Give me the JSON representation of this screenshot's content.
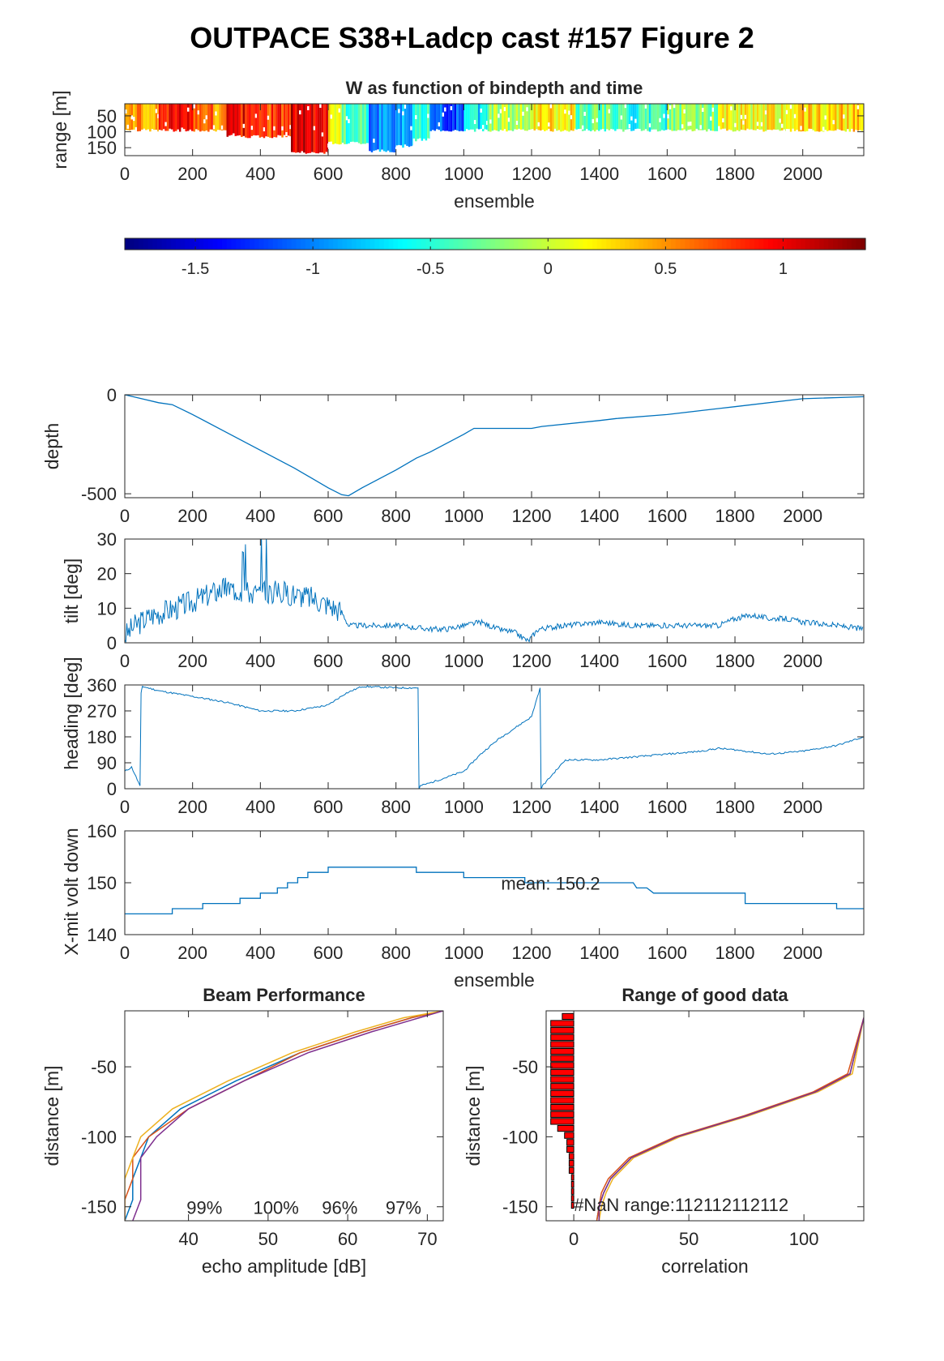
{
  "figure": {
    "title": "OUTPACE S38+Ladcp cast #157 Figure 2"
  },
  "colors": {
    "line": "#0072BD",
    "axis": "#262626",
    "bar_fill": "#FF0000",
    "series": [
      "#0072BD",
      "#D95319",
      "#EDB120",
      "#7E2F8E"
    ]
  },
  "chart_data": [
    {
      "id": "w_image",
      "type": "heatmap",
      "title": "W as function of bindepth and time",
      "xlabel": "ensemble",
      "ylabel": "range [m]",
      "xlim": [
        0,
        2180
      ],
      "ylim": [
        175,
        12
      ],
      "xticks": [
        0,
        200,
        400,
        600,
        800,
        1000,
        1200,
        1400,
        1600,
        1800,
        2000
      ],
      "yticks": [
        50,
        100,
        150
      ],
      "colormap": "jet",
      "clim": [
        -1.8,
        1.35
      ],
      "colorbar_ticks": [
        -1.5,
        -1,
        -0.5,
        0,
        0.5,
        1
      ],
      "segments": [
        {
          "x": [
            0,
            100
          ],
          "w": 0.45,
          "bottom": 100
        },
        {
          "x": [
            100,
            190
          ],
          "w": 0.9,
          "bottom": 100
        },
        {
          "x": [
            190,
            260
          ],
          "w": 0.75,
          "bottom": 100
        },
        {
          "x": [
            260,
            300
          ],
          "w": 0.55,
          "bottom": 100
        },
        {
          "x": [
            300,
            420
          ],
          "w": 0.95,
          "bottom": 120
        },
        {
          "x": [
            420,
            490
          ],
          "w": 0.8,
          "bottom": 120
        },
        {
          "x": [
            490,
            600
          ],
          "w": 1.05,
          "bottom": 170
        },
        {
          "x": [
            600,
            640
          ],
          "w": 0.1,
          "bottom": 140
        },
        {
          "x": [
            640,
            720
          ],
          "w": -0.4,
          "bottom": 140
        },
        {
          "x": [
            720,
            800
          ],
          "w": -1.0,
          "bottom": 165
        },
        {
          "x": [
            800,
            850
          ],
          "w": -0.8,
          "bottom": 150
        },
        {
          "x": [
            850,
            900
          ],
          "w": -0.5,
          "bottom": 130
        },
        {
          "x": [
            900,
            1000
          ],
          "w": -1.2,
          "bottom": 100
        },
        {
          "x": [
            1000,
            1070
          ],
          "w": -0.7,
          "bottom": 100
        },
        {
          "x": [
            1070,
            1200
          ],
          "w": -0.1,
          "bottom": 100
        },
        {
          "x": [
            1200,
            1330
          ],
          "w": 0.2,
          "bottom": 100
        },
        {
          "x": [
            1330,
            1450
          ],
          "w": -0.3,
          "bottom": 100
        },
        {
          "x": [
            1450,
            1600
          ],
          "w": -0.5,
          "bottom": 100
        },
        {
          "x": [
            1600,
            1750
          ],
          "w": -0.2,
          "bottom": 100
        },
        {
          "x": [
            1750,
            1950
          ],
          "w": 0.15,
          "bottom": 100
        },
        {
          "x": [
            1950,
            2180
          ],
          "w": 0.3,
          "bottom": 100
        }
      ]
    },
    {
      "id": "depth",
      "type": "line",
      "xlabel": "",
      "ylabel": "depth",
      "xlim": [
        0,
        2180
      ],
      "ylim": [
        -520,
        0
      ],
      "xticks": [
        0,
        200,
        400,
        600,
        800,
        1000,
        1200,
        1400,
        1600,
        1800,
        2000
      ],
      "yticks": [
        -500,
        0
      ],
      "x": [
        0,
        50,
        100,
        140,
        200,
        300,
        400,
        500,
        600,
        640,
        660,
        700,
        800,
        860,
        900,
        1000,
        1030,
        1200,
        1230,
        1400,
        1450,
        1600,
        1700,
        1800,
        2000,
        2180
      ],
      "y": [
        0,
        -20,
        -40,
        -50,
        -100,
        -190,
        -280,
        -370,
        -470,
        -505,
        -510,
        -470,
        -380,
        -320,
        -290,
        -200,
        -170,
        -170,
        -160,
        -130,
        -120,
        -100,
        -80,
        -60,
        -20,
        -10
      ]
    },
    {
      "id": "tilt",
      "type": "line",
      "xlabel": "",
      "ylabel": "tilt [deg]",
      "xlim": [
        0,
        2180
      ],
      "ylim": [
        0,
        30
      ],
      "xticks": [
        0,
        200,
        400,
        600,
        800,
        1000,
        1200,
        1400,
        1600,
        1800,
        2000
      ],
      "yticks": [
        0,
        10,
        20,
        30
      ],
      "x": [
        0,
        30,
        80,
        150,
        200,
        250,
        300,
        350,
        400,
        450,
        500,
        550,
        600,
        640,
        660,
        700,
        800,
        900,
        950,
        1000,
        1050,
        1100,
        1150,
        1190,
        1220,
        1300,
        1400,
        1500,
        1600,
        1700,
        1750,
        1800,
        1850,
        1900,
        1950,
        2000,
        2100,
        2180
      ],
      "y": [
        2,
        5,
        8,
        10,
        12,
        14,
        16,
        15,
        14,
        15,
        14,
        13,
        11,
        9,
        5,
        5,
        5,
        4,
        4,
        5,
        6,
        4,
        3,
        0.5,
        4,
        5,
        6,
        5,
        5,
        5,
        5,
        7,
        8,
        7,
        7,
        6,
        5,
        4
      ]
    },
    {
      "id": "heading",
      "type": "line",
      "xlabel": "",
      "ylabel": "heading [deg]",
      "xlim": [
        0,
        2180
      ],
      "ylim": [
        0,
        360
      ],
      "xticks": [
        0,
        200,
        400,
        600,
        800,
        1000,
        1200,
        1400,
        1600,
        1800,
        2000
      ],
      "yticks": [
        0,
        90,
        180,
        270,
        360
      ],
      "x": [
        0,
        20,
        45,
        48,
        52,
        100,
        200,
        300,
        400,
        500,
        600,
        650,
        700,
        800,
        865,
        868,
        872,
        900,
        1000,
        1050,
        1100,
        1200,
        1225,
        1228,
        1232,
        1300,
        1400,
        1500,
        1600,
        1700,
        1750,
        1800,
        1900,
        2000,
        2100,
        2180
      ],
      "y": [
        60,
        75,
        10,
        330,
        355,
        340,
        320,
        300,
        270,
        270,
        290,
        330,
        355,
        350,
        350,
        0,
        10,
        20,
        60,
        120,
        170,
        250,
        350,
        0,
        10,
        100,
        100,
        110,
        120,
        130,
        140,
        135,
        120,
        130,
        150,
        180
      ]
    },
    {
      "id": "voltage",
      "type": "line",
      "xlabel": "ensemble",
      "ylabel": "X-mit volt down",
      "annotation": "mean: 150.2",
      "xlim": [
        0,
        2180
      ],
      "ylim": [
        140,
        160
      ],
      "xticks": [
        0,
        200,
        400,
        600,
        800,
        1000,
        1200,
        1400,
        1600,
        1800,
        2000
      ],
      "yticks": [
        140,
        150,
        160
      ],
      "x": [
        0,
        140,
        140,
        230,
        230,
        340,
        340,
        400,
        400,
        450,
        450,
        480,
        480,
        510,
        510,
        540,
        540,
        570,
        570,
        600,
        600,
        650,
        650,
        860,
        860,
        1000,
        1000,
        1180,
        1180,
        1500,
        1510,
        1520,
        1540,
        1560,
        1830,
        1830,
        2100,
        2100,
        2180
      ],
      "y": [
        144,
        144,
        145,
        145,
        146,
        146,
        147,
        147,
        148,
        148,
        149,
        149,
        150,
        150,
        151,
        151,
        152,
        152,
        152,
        152,
        153,
        153,
        153,
        153,
        152,
        152,
        151,
        151,
        150,
        150,
        149,
        149,
        149,
        148,
        148,
        146,
        146,
        145,
        145
      ]
    },
    {
      "id": "beam_performance",
      "type": "line",
      "title": "Beam Performance",
      "xlabel": "echo amplitude [dB]",
      "ylabel": "distance [m]",
      "xlim": [
        32,
        72
      ],
      "ylim": [
        -160,
        -10
      ],
      "xticks": [
        40,
        50,
        60,
        70
      ],
      "yticks": [
        -150,
        -100,
        -50
      ],
      "annotations": [
        "99%",
        "100%",
        "96%",
        "97%"
      ],
      "annotation_x": [
        42,
        51,
        59,
        67
      ],
      "series": [
        {
          "x": [
            72,
            68,
            62,
            54,
            46,
            39,
            35,
            34,
            33,
            33,
            32
          ],
          "y": [
            -10,
            -15,
            -25,
            -40,
            -60,
            -80,
            -100,
            -115,
            -130,
            -145,
            -160
          ]
        },
        {
          "x": [
            72,
            68,
            62,
            54,
            47,
            40,
            35,
            33,
            33,
            32,
            32
          ],
          "y": [
            -10,
            -15,
            -25,
            -40,
            -60,
            -80,
            -100,
            -115,
            -130,
            -145,
            -160
          ]
        },
        {
          "x": [
            72,
            67,
            61,
            53,
            45,
            38,
            34,
            33,
            32,
            32,
            32
          ],
          "y": [
            -10,
            -15,
            -25,
            -40,
            -60,
            -80,
            -100,
            -115,
            -130,
            -145,
            -160
          ]
        },
        {
          "x": [
            72,
            69,
            63,
            55,
            47,
            40,
            36,
            34,
            34,
            34,
            33
          ],
          "y": [
            -10,
            -15,
            -25,
            -40,
            -60,
            -80,
            -100,
            -115,
            -130,
            -145,
            -160
          ]
        }
      ]
    },
    {
      "id": "range_good_data",
      "type": "line",
      "title": "Range of good data",
      "xlabel": "correlation",
      "ylabel": "distance [m]",
      "annotation": "#NaN range:112112112112",
      "xlim": [
        -12,
        126
      ],
      "ylim": [
        -160,
        -10
      ],
      "xticks": [
        0,
        50,
        100
      ],
      "yticks": [
        -150,
        -100,
        -50
      ],
      "bars": {
        "y": [
          -14,
          -19,
          -24,
          -29,
          -34,
          -39,
          -44,
          -49,
          -54,
          -59,
          -64,
          -69,
          -74,
          -79,
          -84,
          -89,
          -94,
          -99,
          -104,
          -109,
          -114,
          -119,
          -124,
          -129,
          -134,
          -139,
          -144,
          -149
        ],
        "x": [
          -5,
          -10,
          -10,
          -10,
          -10,
          -10,
          -10,
          -10,
          -10,
          -10,
          -10,
          -10,
          -10,
          -10,
          -10,
          -10,
          -7,
          -4,
          -3,
          -3,
          -2,
          -2,
          -2,
          -1,
          -1,
          -1,
          -1,
          -1
        ]
      },
      "series": [
        {
          "x": [
            126,
            120,
            105,
            75,
            45,
            25,
            16,
            13,
            11,
            10
          ],
          "y": [
            -15,
            -55,
            -68,
            -85,
            -100,
            -115,
            -130,
            -140,
            -150,
            -160
          ]
        },
        {
          "x": [
            126,
            119,
            104,
            74,
            44,
            24,
            15,
            12,
            11,
            10
          ],
          "y": [
            -15,
            -55,
            -68,
            -85,
            -100,
            -115,
            -130,
            -140,
            -150,
            -160
          ]
        },
        {
          "x": [
            126,
            121,
            106,
            76,
            46,
            26,
            17,
            14,
            12,
            11
          ],
          "y": [
            -15,
            -55,
            -68,
            -85,
            -100,
            -115,
            -130,
            -140,
            -150,
            -160
          ]
        },
        {
          "x": [
            126,
            120,
            105,
            75,
            45,
            25,
            16,
            13,
            11,
            11
          ],
          "y": [
            -15,
            -55,
            -68,
            -85,
            -100,
            -115,
            -130,
            -140,
            -150,
            -160
          ]
        }
      ]
    }
  ]
}
